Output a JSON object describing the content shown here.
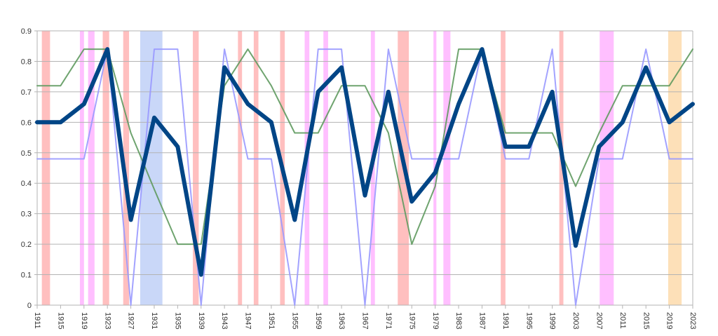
{
  "chart_data": {
    "type": "line",
    "title": "",
    "xlabel": "",
    "ylabel": "",
    "ylim": [
      0,
      0.9
    ],
    "yticks": [
      "0",
      "0.1",
      "0.2",
      "0.3",
      "0.4",
      "0.5",
      "0.6",
      "0.7",
      "0.8",
      "0.9"
    ],
    "grid": true,
    "legend": "none",
    "x": [
      1911,
      1915,
      1919,
      1923,
      1927,
      1931,
      1935,
      1939,
      1943,
      1947,
      1951,
      1955,
      1959,
      1963,
      1967,
      1971,
      1975,
      1979,
      1983,
      1987,
      1991,
      1995,
      1999,
      2003,
      2007,
      2011,
      2015,
      2019,
      2023
    ],
    "xtick_labels": [
      "1911",
      "1915",
      "1919",
      "1923",
      "1927",
      "1931",
      "1935",
      "1939",
      "1943",
      "1947",
      "1951",
      "1955",
      "1959",
      "1963",
      "1967",
      "1971",
      "1975",
      "1979",
      "1983",
      "1987",
      "1991",
      "1995",
      "1999",
      "2003",
      "2007",
      "2011",
      "2015",
      "2019",
      "2023"
    ],
    "series": [
      {
        "name": "green-series",
        "color": "#5f9a5f",
        "width": 2,
        "values": [
          0.72,
          0.72,
          0.84,
          0.84,
          0.565,
          0.38,
          0.2,
          0.2,
          0.72,
          0.84,
          0.72,
          0.565,
          0.565,
          0.72,
          0.72,
          0.565,
          0.2,
          0.39,
          0.84,
          0.84,
          0.565,
          0.565,
          0.565,
          0.39,
          0.565,
          0.72,
          0.72,
          0.72,
          0.84
        ]
      },
      {
        "name": "light-blue-series",
        "color": "#9999ff",
        "width": 2,
        "values": [
          0.48,
          0.48,
          0.48,
          0.84,
          0.0,
          0.84,
          0.84,
          0.0,
          0.84,
          0.48,
          0.48,
          0.0,
          0.84,
          0.84,
          0.0,
          0.84,
          0.48,
          0.48,
          0.48,
          0.84,
          0.48,
          0.48,
          0.84,
          0.0,
          0.48,
          0.48,
          0.84,
          0.48,
          0.48
        ]
      },
      {
        "name": "dark-blue-series",
        "color": "#004586",
        "width": 6,
        "values": [
          0.6,
          0.6,
          0.66,
          0.84,
          0.28,
          0.615,
          0.52,
          0.1,
          0.78,
          0.66,
          0.6,
          0.28,
          0.7,
          0.78,
          0.36,
          0.7,
          0.34,
          0.435,
          0.66,
          0.84,
          0.52,
          0.52,
          0.7,
          0.195,
          0.52,
          0.6,
          0.78,
          0.6,
          0.66
        ]
      }
    ],
    "bands": [
      {
        "from": 1911.8,
        "to": 1913.2,
        "color": "#ffbfbf"
      },
      {
        "from": 1918.3,
        "to": 1919.0,
        "color": "#ffbfff"
      },
      {
        "from": 1919.7,
        "to": 1920.8,
        "color": "#ffbfff"
      },
      {
        "from": 1922.2,
        "to": 1923.3,
        "color": "#ffbfbf"
      },
      {
        "from": 1925.7,
        "to": 1926.7,
        "color": "#ffbfbf"
      },
      {
        "from": 1928.6,
        "to": 1932.4,
        "color": "#c9d7f8"
      },
      {
        "from": 1937.6,
        "to": 1938.6,
        "color": "#ffbfbf"
      },
      {
        "from": 1945.3,
        "to": 1946.0,
        "color": "#ffbfbf"
      },
      {
        "from": 1948.0,
        "to": 1948.8,
        "color": "#ffbfbf"
      },
      {
        "from": 1952.5,
        "to": 1953.3,
        "color": "#ffbfbf"
      },
      {
        "from": 1956.7,
        "to": 1957.5,
        "color": "#ffbfff"
      },
      {
        "from": 1959.9,
        "to": 1960.7,
        "color": "#ffbfff"
      },
      {
        "from": 1968.0,
        "to": 1968.7,
        "color": "#ffbfff"
      },
      {
        "from": 1972.6,
        "to": 1974.5,
        "color": "#ffbfbf"
      },
      {
        "from": 1978.7,
        "to": 1979.2,
        "color": "#ffbfff"
      },
      {
        "from": 1980.4,
        "to": 1981.6,
        "color": "#ffbfff"
      },
      {
        "from": 1990.2,
        "to": 1991.0,
        "color": "#ffbfbf"
      },
      {
        "from": 2000.2,
        "to": 2000.9,
        "color": "#ffbfbf"
      },
      {
        "from": 2007.1,
        "to": 2009.5,
        "color": "#ffbfff"
      },
      {
        "from": 2018.8,
        "to": 2021.1,
        "color": "#fde0b8"
      }
    ]
  }
}
